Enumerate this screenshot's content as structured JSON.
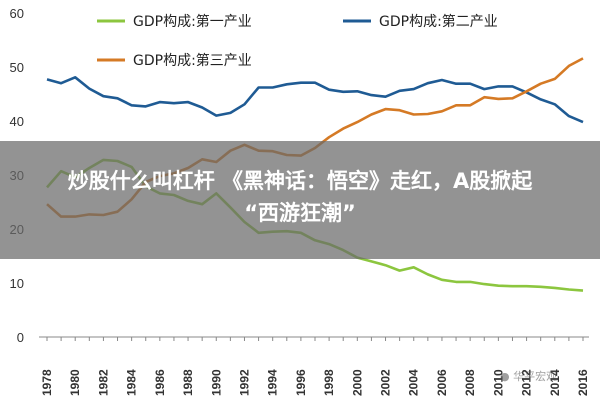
{
  "chart_data": {
    "type": "line",
    "x": [
      1978,
      1979,
      1980,
      1981,
      1982,
      1983,
      1984,
      1985,
      1986,
      1987,
      1988,
      1989,
      1990,
      1991,
      1992,
      1993,
      1994,
      1995,
      1996,
      1997,
      1998,
      1999,
      2000,
      2001,
      2002,
      2003,
      2004,
      2005,
      2006,
      2007,
      2008,
      2009,
      2010,
      2011,
      2012,
      2013,
      2014,
      2015,
      2016
    ],
    "x_ticks": [
      1978,
      1980,
      1982,
      1984,
      1986,
      1988,
      1990,
      1992,
      1994,
      1996,
      1998,
      2000,
      2002,
      2004,
      2006,
      2008,
      2010,
      2012,
      2014,
      2016
    ],
    "y_ticks": [
      0,
      10,
      20,
      30,
      40,
      50,
      60
    ],
    "ylim": [
      0,
      60
    ],
    "grid": false,
    "legend_position": "top",
    "series": [
      {
        "name": "GDP构成:第一产业",
        "color": "#8cc63f",
        "values": [
          27.7,
          30.7,
          29.6,
          31.3,
          32.8,
          32.6,
          31.5,
          27.9,
          26.6,
          26.3,
          25.2,
          24.6,
          26.6,
          24.0,
          21.3,
          19.3,
          19.5,
          19.6,
          19.3,
          17.9,
          17.2,
          16.1,
          14.7,
          14.0,
          13.3,
          12.3,
          12.9,
          11.6,
          10.6,
          10.2,
          10.2,
          9.8,
          9.5,
          9.4,
          9.4,
          9.3,
          9.1,
          8.8,
          8.6
        ]
      },
      {
        "name": "GDP构成:第二产业",
        "color": "#1f5b94",
        "values": [
          47.7,
          47.0,
          48.1,
          46.0,
          44.6,
          44.2,
          42.9,
          42.7,
          43.5,
          43.3,
          43.5,
          42.5,
          41.0,
          41.5,
          43.1,
          46.2,
          46.2,
          46.8,
          47.1,
          47.1,
          45.8,
          45.4,
          45.5,
          44.8,
          44.5,
          45.6,
          45.9,
          47.0,
          47.6,
          46.9,
          46.9,
          45.9,
          46.4,
          46.4,
          45.3,
          44.0,
          43.1,
          40.9,
          39.8
        ]
      },
      {
        "name": "GDP构成:第三产业",
        "color": "#d57a25",
        "values": [
          24.6,
          22.3,
          22.3,
          22.7,
          22.6,
          23.2,
          25.5,
          28.7,
          29.8,
          30.3,
          31.3,
          32.9,
          32.4,
          34.5,
          35.6,
          34.5,
          34.4,
          33.7,
          33.6,
          35.0,
          37.0,
          38.6,
          39.8,
          41.2,
          42.2,
          42.0,
          41.2,
          41.3,
          41.8,
          42.9,
          42.9,
          44.4,
          44.1,
          44.2,
          45.5,
          46.9,
          47.8,
          50.2,
          51.6
        ]
      }
    ]
  },
  "banner": {
    "line1": "炒股什么叫杠杆 《黑神话：悟空》走红，A股掀起",
    "line2": "“西游狂潮”"
  },
  "watermark": "● 华平宏观"
}
